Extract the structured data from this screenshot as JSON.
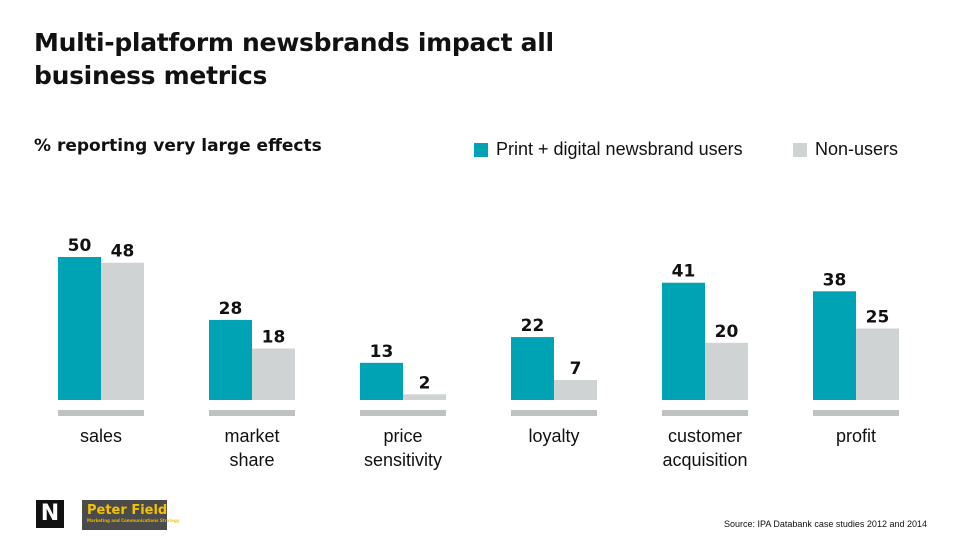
{
  "colors": {
    "series1": "#00A3B4",
    "series2": "#D0D3D4",
    "baseline": "#BFC2C3",
    "text": "#111111"
  },
  "logos": {
    "left": "N",
    "right": "Peter Field",
    "right_tagline": "Marketing and Communications Strategy"
  },
  "source": "Source: IPA Databank case studies 2012 and 2014",
  "chart_data": {
    "type": "bar",
    "title": "Multi-platform newsbrands impact all business metrics",
    "subtitle": "% reporting very large effects",
    "categories": [
      "sales",
      "market share",
      "price sensitivity",
      "loyalty",
      "customer acquisition",
      "profit"
    ],
    "category_lines": [
      [
        "sales"
      ],
      [
        "market",
        "share"
      ],
      [
        "price",
        "sensitivity"
      ],
      [
        "loyalty"
      ],
      [
        "customer",
        "acquisition"
      ],
      [
        "profit"
      ]
    ],
    "series": [
      {
        "name": "Print + digital newsbrand users",
        "values": [
          50,
          28,
          13,
          22,
          41,
          38
        ]
      },
      {
        "name": "Non-users",
        "values": [
          48,
          18,
          2,
          7,
          20,
          25
        ]
      }
    ],
    "ylim": [
      0,
      50
    ],
    "xlabel": "",
    "ylabel": "",
    "grid": false,
    "legend_position": "top-right"
  }
}
